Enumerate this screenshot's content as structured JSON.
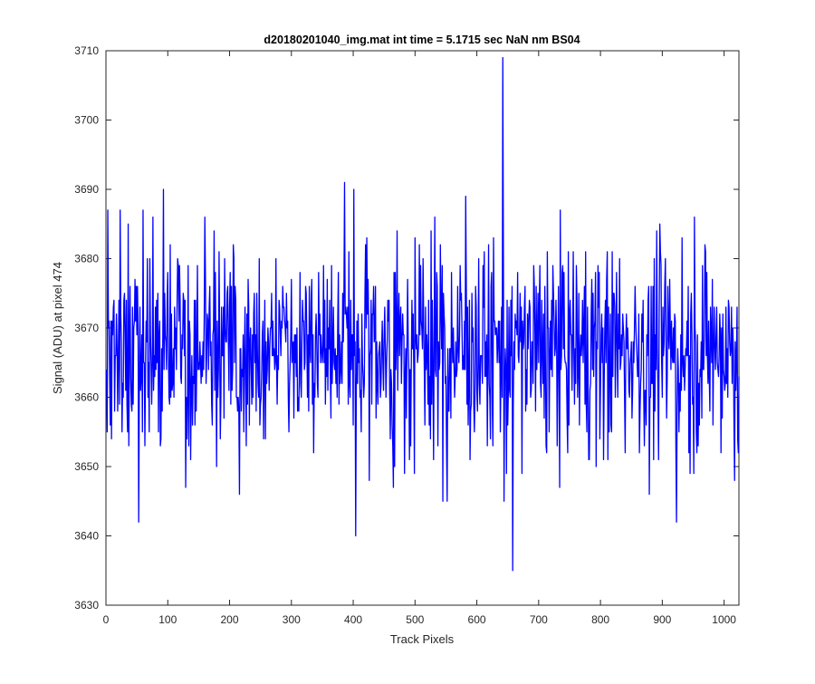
{
  "chart_data": {
    "type": "line",
    "title": "d20180201040_img.mat int time = 5.1715 sec  NaN nm BS04",
    "xlabel": "Track Pixels",
    "ylabel": "Signal (ADU) at pixel 474",
    "xlim": [
      0,
      1024
    ],
    "ylim": [
      3630,
      3710
    ],
    "xticks": [
      0,
      100,
      200,
      300,
      400,
      500,
      600,
      700,
      800,
      900,
      1000
    ],
    "yticks": [
      3630,
      3640,
      3650,
      3660,
      3670,
      3680,
      3690,
      3700,
      3710
    ],
    "grid": false,
    "legend": "none",
    "series": [
      {
        "color": "#0000ff",
        "note": "1024-sample noisy signal; key extremes read from plot",
        "mean": 3667,
        "noise_range": [
          3642,
          3691
        ],
        "notable_points": [
          {
            "x": 6,
            "y": 3656
          },
          {
            "x": 35,
            "y": 3685
          },
          {
            "x": 52,
            "y": 3642
          },
          {
            "x": 92,
            "y": 3690
          },
          {
            "x": 128,
            "y": 3647
          },
          {
            "x": 215,
            "y": 3646
          },
          {
            "x": 385,
            "y": 3691
          },
          {
            "x": 400,
            "y": 3690
          },
          {
            "x": 403,
            "y": 3640
          },
          {
            "x": 551,
            "y": 3645
          },
          {
            "x": 581,
            "y": 3689
          },
          {
            "x": 641,
            "y": 3709
          },
          {
            "x": 643,
            "y": 3645
          },
          {
            "x": 657,
            "y": 3635
          },
          {
            "x": 878,
            "y": 3646
          },
          {
            "x": 922,
            "y": 3642
          },
          {
            "x": 1022,
            "y": 3652
          }
        ]
      }
    ]
  }
}
